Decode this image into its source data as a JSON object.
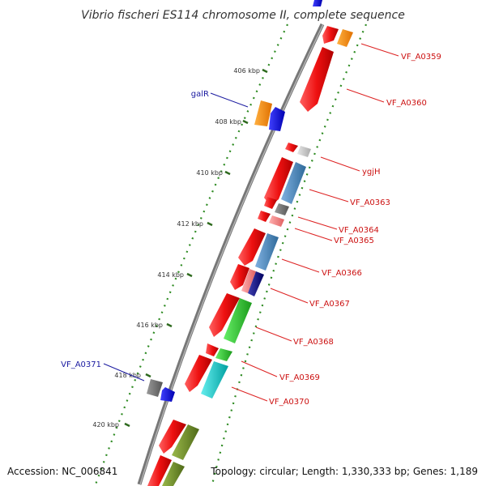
{
  "title": "Vibrio fischeri ES114 chromosome II, complete sequence",
  "footer": {
    "accession": "Accession: NC_006841",
    "summary": "Topology: circular; Length: 1,330,333 bp; Genes: 1,189"
  },
  "ticks": [
    {
      "label": "406 kbp",
      "kbp": 406
    },
    {
      "label": "408 kbp",
      "kbp": 408
    },
    {
      "label": "410 kbp",
      "kbp": 410
    },
    {
      "label": "412 kbp",
      "kbp": 412
    },
    {
      "label": "414 kbp",
      "kbp": 414
    },
    {
      "label": "416 kbp",
      "kbp": 416
    },
    {
      "label": "418 kbp",
      "kbp": 418
    },
    {
      "label": "420 kbp",
      "kbp": 420
    }
  ],
  "gene_labels": [
    {
      "text": "VF_A0359",
      "strand": "forward"
    },
    {
      "text": "VF_A0360",
      "strand": "forward"
    },
    {
      "text": "galR",
      "strand": "reverse"
    },
    {
      "text": "ygjH",
      "strand": "forward"
    },
    {
      "text": "VF_A0363",
      "strand": "forward"
    },
    {
      "text": "VF_A0364",
      "strand": "forward"
    },
    {
      "text": "VF_A0365",
      "strand": "forward"
    },
    {
      "text": "VF_A0366",
      "strand": "forward"
    },
    {
      "text": "VF_A0367",
      "strand": "forward"
    },
    {
      "text": "VF_A0368",
      "strand": "forward"
    },
    {
      "text": "VF_A0369",
      "strand": "forward"
    },
    {
      "text": "VF_A0370",
      "strand": "forward"
    },
    {
      "text": "VF_A0371",
      "strand": "reverse"
    }
  ],
  "colors": {
    "cds": "#ee1111",
    "orange": "#ff8c00",
    "blue": "#1111ee",
    "steel": "#4682b4",
    "green": "#33cc33",
    "olive": "#6b8e23",
    "cyan": "#11cccc",
    "navy": "#101080",
    "gray": "#777777",
    "lightgray": "#cccccc",
    "pink": "#ff8888",
    "backbone": "#777777",
    "dots": "#2e8b22"
  }
}
